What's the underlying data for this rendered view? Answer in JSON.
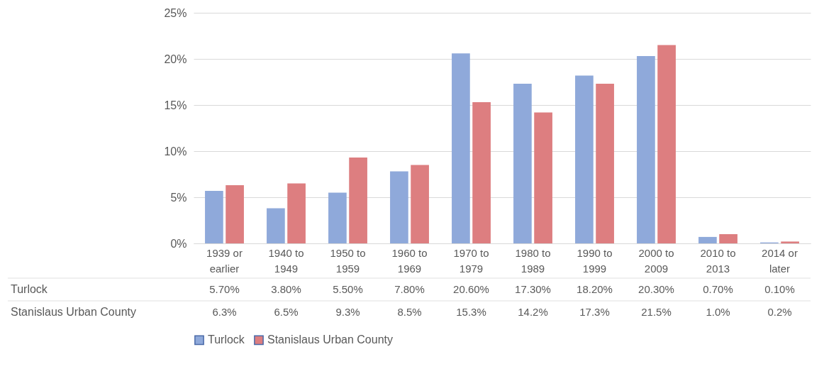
{
  "chart_data": {
    "type": "bar",
    "categories": [
      "1939 or earlier",
      "1940 to 1949",
      "1950 to 1959",
      "1960 to 1969",
      "1970 to 1979",
      "1980 to 1989",
      "1990 to 1999",
      "2000 to 2009",
      "2010 to 2013",
      "2014 or later"
    ],
    "series": [
      {
        "name": "Turlock",
        "color": "#8fa9da",
        "values": [
          5.7,
          3.8,
          5.5,
          7.8,
          20.6,
          17.3,
          18.2,
          20.3,
          0.7,
          0.1
        ],
        "value_labels": [
          "5.70%",
          "3.80%",
          "5.50%",
          "7.80%",
          "20.60%",
          "17.30%",
          "18.20%",
          "20.30%",
          "0.70%",
          "0.10%"
        ]
      },
      {
        "name": "Stanislaus Urban County",
        "color": "#dd7e80",
        "values": [
          6.3,
          6.5,
          9.3,
          8.5,
          15.3,
          14.2,
          17.3,
          21.5,
          1.0,
          0.2
        ],
        "value_labels": [
          "6.3%",
          "6.5%",
          "9.3%",
          "8.5%",
          "15.3%",
          "14.2%",
          "17.3%",
          "21.5%",
          "1.0%",
          "0.2%"
        ]
      }
    ],
    "ylim": [
      0,
      25
    ],
    "yticks": [
      {
        "value": 0,
        "label": "0%"
      },
      {
        "value": 5,
        "label": "5%"
      },
      {
        "value": 10,
        "label": "10%"
      },
      {
        "value": 15,
        "label": "15%"
      },
      {
        "value": 20,
        "label": "20%"
      },
      {
        "value": 25,
        "label": "25%"
      }
    ],
    "grid": "y",
    "legend": "bottom"
  }
}
